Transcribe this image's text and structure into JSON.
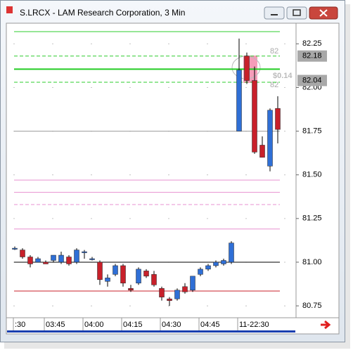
{
  "chart_data": {
    "type": "candlestick",
    "title": "S.LRCX - LAM Research Corporation, 3 Min",
    "categories": [
      ":30",
      null,
      null,
      null,
      "03:45",
      null,
      null,
      null,
      null,
      "04:00",
      null,
      null,
      null,
      null,
      "04:15",
      null,
      null,
      null,
      null,
      "04:30",
      null,
      null,
      null,
      null,
      "04:45",
      null,
      null,
      null,
      null,
      "11-22:30",
      null,
      null,
      null,
      null,
      null
    ],
    "open": [
      81.08,
      81.07,
      81.03,
      81.0,
      81.0,
      81.01,
      81.0,
      81.03,
      81.0,
      81.06,
      81.02,
      81.0,
      80.89,
      80.93,
      80.98,
      80.85,
      80.88,
      80.95,
      80.93,
      80.85,
      80.79,
      80.79,
      80.86,
      80.84,
      80.93,
      80.96,
      80.98,
      80.99,
      81.0,
      81.75,
      82.18,
      82.04,
      81.67,
      81.55,
      81.88
    ],
    "high": [
      81.09,
      81.08,
      81.04,
      81.03,
      81.01,
      81.04,
      81.06,
      81.04,
      81.08,
      81.07,
      81.03,
      81.01,
      80.93,
      80.99,
      80.99,
      80.87,
      80.97,
      80.96,
      80.95,
      80.86,
      80.8,
      80.85,
      80.88,
      80.92,
      80.97,
      80.99,
      81.01,
      81.02,
      81.12,
      82.28,
      82.2,
      82.12,
      81.72,
      81.88,
      81.95
    ],
    "low": [
      81.07,
      81.02,
      80.97,
      81.0,
      80.99,
      81.0,
      80.99,
      80.98,
      80.99,
      81.02,
      81.01,
      80.87,
      80.86,
      80.92,
      80.86,
      80.83,
      80.87,
      80.91,
      80.86,
      80.78,
      80.75,
      80.78,
      80.82,
      80.83,
      80.92,
      80.95,
      80.97,
      80.98,
      80.99,
      81.75,
      82.02,
      81.62,
      81.6,
      81.52,
      81.68
    ],
    "close": [
      81.08,
      81.03,
      80.99,
      81.02,
      80.99,
      81.04,
      81.04,
      80.99,
      81.07,
      81.06,
      81.02,
      80.9,
      80.91,
      80.98,
      80.88,
      80.84,
      80.96,
      80.92,
      80.87,
      80.8,
      80.78,
      80.84,
      80.83,
      80.92,
      80.96,
      80.98,
      81.0,
      81.01,
      81.11,
      82.1,
      82.04,
      81.63,
      81.6,
      81.87,
      81.76
    ],
    "up_color": "#2f6fd6",
    "down_color": "#c8202a",
    "levels": [
      {
        "value": 82.32,
        "color": "#2ecc2e",
        "style": "solid"
      },
      {
        "value": 82.18,
        "color": "#2ecc2e",
        "style": "dashed"
      },
      {
        "value": 82.105,
        "color": "#22cc22",
        "style": "thick"
      },
      {
        "value": 82.03,
        "color": "#2ecc2e",
        "style": "dashed"
      },
      {
        "value": 81.75,
        "color": "#999999",
        "style": "solid"
      },
      {
        "value": 81.47,
        "color": "#e890d0",
        "style": "solid"
      },
      {
        "value": 81.4,
        "color": "#e890d0",
        "style": "solid"
      },
      {
        "value": 81.33,
        "color": "#e890d0",
        "style": "dashed"
      },
      {
        "value": 81.19,
        "color": "#e890d0",
        "style": "solid"
      },
      {
        "value": 81.0,
        "color": "#000000",
        "style": "solid"
      },
      {
        "value": 80.835,
        "color": "#c8202a",
        "style": "solid"
      }
    ],
    "price_markers": [
      82.18,
      82.04
    ],
    "annotations": [
      "82",
      "$0.14",
      "82"
    ],
    "ylim": [
      80.69,
      82.36
    ],
    "yticks": [
      80.75,
      {
        "value": 81,
        "label": "81.00"
      },
      81.25,
      {
        "value": 81.5,
        "label": "81.50"
      },
      81.75,
      {
        "value": 82,
        "label": "82.00"
      },
      82.25
    ],
    "grid": true
  }
}
